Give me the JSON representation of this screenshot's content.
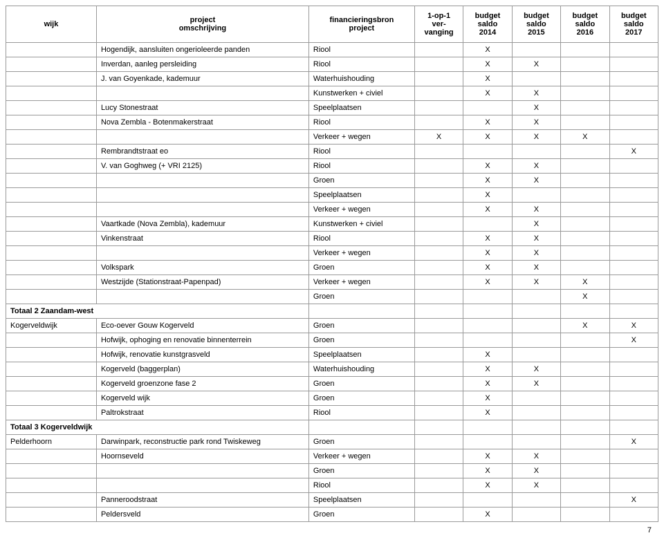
{
  "headers": {
    "wijk": "wijk",
    "omschrijving_l1": "project",
    "omschrijving_l2": "omschrijving",
    "financ_l1": "financieringsbron",
    "financ_l2": "project",
    "opvervanging_l1": "1-op-1",
    "opvervanging_l2": "ver-",
    "opvervanging_l3": "vanging",
    "b2014_l1": "budget",
    "b2014_l2": "saldo",
    "b2014_l3": "2014",
    "b2015_l1": "budget",
    "b2015_l2": "saldo",
    "b2015_l3": "2015",
    "b2016_l1": "budget",
    "b2016_l2": "saldo",
    "b2016_l3": "2016",
    "b2017_l1": "budget",
    "b2017_l2": "saldo",
    "b2017_l3": "2017"
  },
  "rows": [
    {
      "wijk": "",
      "omschrijving": "Hogendijk, aansluiten ongerioleerde panden",
      "financ": "Riool",
      "c1": "",
      "c2": "X",
      "c3": "",
      "c4": "",
      "c5": ""
    },
    {
      "wijk": "",
      "omschrijving": "Inverdan, aanleg persleiding",
      "financ": "Riool",
      "c1": "",
      "c2": "X",
      "c3": "X",
      "c4": "",
      "c5": ""
    },
    {
      "wijk": "",
      "omschrijving": "J. van Goyenkade, kademuur",
      "financ": "Waterhuishouding",
      "c1": "",
      "c2": "X",
      "c3": "",
      "c4": "",
      "c5": ""
    },
    {
      "wijk": "",
      "omschrijving": "",
      "financ": "Kunstwerken + civiel",
      "c1": "",
      "c2": "X",
      "c3": "X",
      "c4": "",
      "c5": ""
    },
    {
      "wijk": "",
      "omschrijving": "Lucy Stonestraat",
      "financ": "Speelplaatsen",
      "c1": "",
      "c2": "",
      "c3": "X",
      "c4": "",
      "c5": ""
    },
    {
      "wijk": "",
      "omschrijving": "Nova Zembla - Botenmakerstraat",
      "financ": "Riool",
      "c1": "",
      "c2": "X",
      "c3": "X",
      "c4": "",
      "c5": ""
    },
    {
      "wijk": "",
      "omschrijving": "",
      "financ": "Verkeer + wegen",
      "c1": "X",
      "c2": "X",
      "c3": "X",
      "c4": "X",
      "c5": ""
    },
    {
      "wijk": "",
      "omschrijving": "Rembrandtstraat eo",
      "financ": "Riool",
      "c1": "",
      "c2": "",
      "c3": "",
      "c4": "",
      "c5": "X"
    },
    {
      "wijk": "",
      "omschrijving": "V. van Goghweg (+ VRI 2125)",
      "financ": "Riool",
      "c1": "",
      "c2": "X",
      "c3": "X",
      "c4": "",
      "c5": ""
    },
    {
      "wijk": "",
      "omschrijving": "",
      "financ": "Groen",
      "c1": "",
      "c2": "X",
      "c3": "X",
      "c4": "",
      "c5": ""
    },
    {
      "wijk": "",
      "omschrijving": "",
      "financ": "Speelplaatsen",
      "c1": "",
      "c2": "X",
      "c3": "",
      "c4": "",
      "c5": ""
    },
    {
      "wijk": "",
      "omschrijving": "",
      "financ": "Verkeer + wegen",
      "c1": "",
      "c2": "X",
      "c3": "X",
      "c4": "",
      "c5": ""
    },
    {
      "wijk": "",
      "omschrijving": "Vaartkade (Nova Zembla), kademuur",
      "financ": "Kunstwerken + civiel",
      "c1": "",
      "c2": "",
      "c3": "X",
      "c4": "",
      "c5": ""
    },
    {
      "wijk": "",
      "omschrijving": "Vinkenstraat",
      "financ": "Riool",
      "c1": "",
      "c2": "X",
      "c3": "X",
      "c4": "",
      "c5": ""
    },
    {
      "wijk": "",
      "omschrijving": "",
      "financ": "Verkeer + wegen",
      "c1": "",
      "c2": "X",
      "c3": "X",
      "c4": "",
      "c5": ""
    },
    {
      "wijk": "",
      "omschrijving": "Volkspark",
      "financ": "Groen",
      "c1": "",
      "c2": "X",
      "c3": "X",
      "c4": "",
      "c5": ""
    },
    {
      "wijk": "",
      "omschrijving": "Westzijde (Stationstraat-Papenpad)",
      "financ": "Verkeer + wegen",
      "c1": "",
      "c2": "X",
      "c3": "X",
      "c4": "X",
      "c5": ""
    },
    {
      "wijk": "",
      "omschrijving": "",
      "financ": "Groen",
      "c1": "",
      "c2": "",
      "c3": "",
      "c4": "X",
      "c5": ""
    },
    {
      "wijk": "Totaal 2 Zaandam-west",
      "omschrijving": "",
      "financ": "",
      "c1": "",
      "c2": "",
      "c3": "",
      "c4": "",
      "c5": "",
      "bold": true,
      "span": true
    },
    {
      "wijk": "Kogerveldwijk",
      "omschrijving": "Eco-oever Gouw Kogerveld",
      "financ": "Groen",
      "c1": "",
      "c2": "",
      "c3": "",
      "c4": "X",
      "c5": "X"
    },
    {
      "wijk": "",
      "omschrijving": "Hofwijk, ophoging en renovatie binnenterrein",
      "financ": "Groen",
      "c1": "",
      "c2": "",
      "c3": "",
      "c4": "",
      "c5": "X"
    },
    {
      "wijk": "",
      "omschrijving": "Hofwijk, renovatie kunstgrasveld",
      "financ": "Speelplaatsen",
      "c1": "",
      "c2": "X",
      "c3": "",
      "c4": "",
      "c5": ""
    },
    {
      "wijk": "",
      "omschrijving": "Kogerveld (baggerplan)",
      "financ": "Waterhuishouding",
      "c1": "",
      "c2": "X",
      "c3": "X",
      "c4": "",
      "c5": ""
    },
    {
      "wijk": "",
      "omschrijving": "Kogerveld groenzone fase 2",
      "financ": "Groen",
      "c1": "",
      "c2": "X",
      "c3": "X",
      "c4": "",
      "c5": ""
    },
    {
      "wijk": "",
      "omschrijving": "Kogerveld wijk",
      "financ": "Groen",
      "c1": "",
      "c2": "X",
      "c3": "",
      "c4": "",
      "c5": ""
    },
    {
      "wijk": "",
      "omschrijving": "Paltrokstraat",
      "financ": "Riool",
      "c1": "",
      "c2": "X",
      "c3": "",
      "c4": "",
      "c5": ""
    },
    {
      "wijk": "Totaal 3 Kogerveldwijk",
      "omschrijving": "",
      "financ": "",
      "c1": "",
      "c2": "",
      "c3": "",
      "c4": "",
      "c5": "",
      "bold": true,
      "span": true
    },
    {
      "wijk": "Pelderhoorn",
      "omschrijving": "Darwinpark, reconstructie park rond Twiskeweg",
      "financ": "Groen",
      "c1": "",
      "c2": "",
      "c3": "",
      "c4": "",
      "c5": "X"
    },
    {
      "wijk": "",
      "omschrijving": "Hoornseveld",
      "financ": "Verkeer + wegen",
      "c1": "",
      "c2": "X",
      "c3": "X",
      "c4": "",
      "c5": ""
    },
    {
      "wijk": "",
      "omschrijving": "",
      "financ": "Groen",
      "c1": "",
      "c2": "X",
      "c3": "X",
      "c4": "",
      "c5": ""
    },
    {
      "wijk": "",
      "omschrijving": "",
      "financ": "Riool",
      "c1": "",
      "c2": "X",
      "c3": "X",
      "c4": "",
      "c5": ""
    },
    {
      "wijk": "",
      "omschrijving": "Panneroodstraat",
      "financ": "Speelplaatsen",
      "c1": "",
      "c2": "",
      "c3": "",
      "c4": "",
      "c5": "X"
    },
    {
      "wijk": "",
      "omschrijving": "Peldersveld",
      "financ": "Groen",
      "c1": "",
      "c2": "X",
      "c3": "",
      "c4": "",
      "c5": ""
    }
  ],
  "pagenum": "7"
}
